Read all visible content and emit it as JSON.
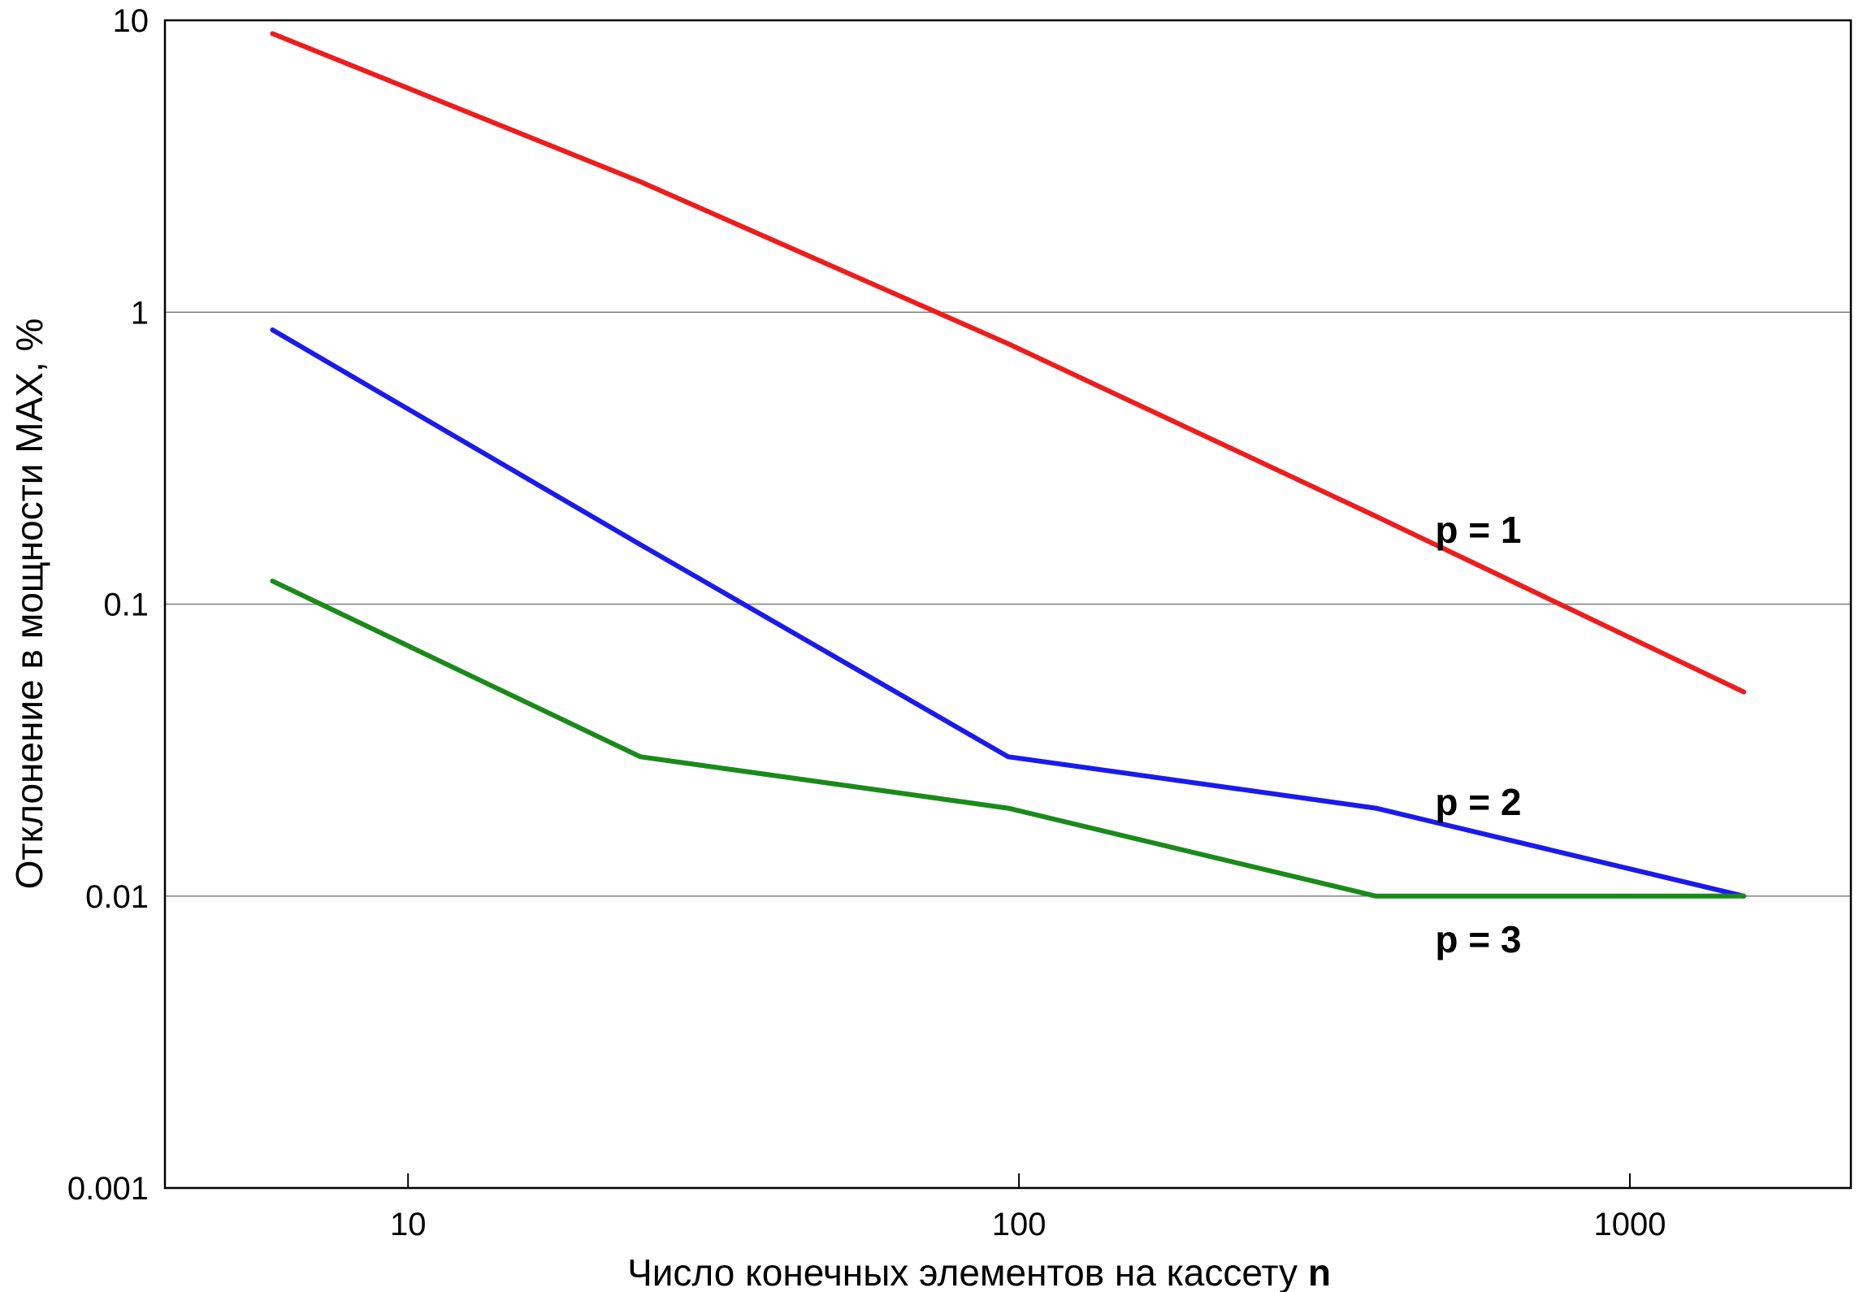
{
  "chart_data": {
    "type": "line",
    "x_scale": "log",
    "y_scale": "log",
    "xlim": [
      4,
      2300
    ],
    "ylim": [
      0.001,
      10
    ],
    "grid": {
      "horizontal": true,
      "vertical": false
    },
    "xlabel_text": "Число конечных элементов на кассету ",
    "xlabel_bold": "n",
    "ylabel": "Отклонение в мощности MAX, %",
    "x_ticks": [
      {
        "value": 10,
        "label": "10"
      },
      {
        "value": 100,
        "label": "100"
      },
      {
        "value": 1000,
        "label": "1000"
      }
    ],
    "y_ticks": [
      {
        "value": 10,
        "label": "10"
      },
      {
        "value": 1,
        "label": "1"
      },
      {
        "value": 0.1,
        "label": "0.1"
      },
      {
        "value": 0.01,
        "label": "0.01"
      },
      {
        "value": 0.001,
        "label": "0.001"
      }
    ],
    "series": [
      {
        "name": "p = 1",
        "color": "#ee1c1c",
        "x": [
          6,
          24,
          96,
          384,
          1536
        ],
        "y": [
          9,
          2.8,
          0.78,
          0.2,
          0.05
        ],
        "label_at": {
          "x": 480,
          "y": 0.18
        }
      },
      {
        "name": "p = 2",
        "color": "#1a1aee",
        "x": [
          6,
          24,
          96,
          384,
          1536
        ],
        "y": [
          0.87,
          0.16,
          0.03,
          0.02,
          0.01
        ],
        "label_at": {
          "x": 480,
          "y": 0.021
        }
      },
      {
        "name": "p = 3",
        "color": "#1a8a1a",
        "x": [
          6,
          24,
          96,
          384,
          1536
        ],
        "y": [
          0.12,
          0.03,
          0.02,
          0.01,
          0.01
        ],
        "label_at": {
          "x": 480,
          "y": 0.0071
        }
      }
    ]
  }
}
